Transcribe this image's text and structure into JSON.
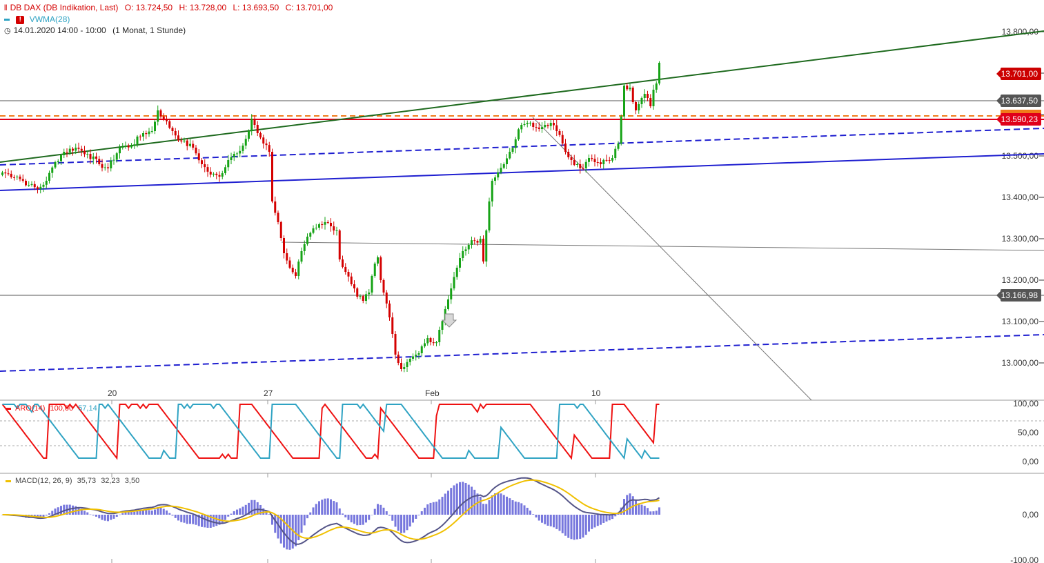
{
  "header": {
    "instrument": "DB DAX (DB Indikation, Last)",
    "open_label": "O: 13.724,50",
    "high_label": "H: 13.728,00",
    "low_label": "L: 13.693,50",
    "close_label": "C: 13.701,00",
    "indicator": "VWMA(28)",
    "period": "14.01.2020 14:00 - 10:00",
    "interval": "(1 Monat, 1 Stunde)"
  },
  "colors": {
    "up": "#16a316",
    "down": "#d40000",
    "trend_green": "#1e6a1e",
    "blue": "#1f1fd0",
    "orange_dashed": "#f07a1a",
    "red_line": "#e0001a",
    "aroon_up": "#ee1111",
    "aroon_down": "#2fa3c3",
    "macd_line": "#555588",
    "signal_line": "#f0c000",
    "histogram": "#7777dd"
  },
  "price_labels": {
    "last": "13.701,00",
    "resistance": "13.637,50",
    "hline_red": "13.590,23",
    "support": "13.166,98"
  },
  "aroon_header": {
    "name": "ARO(14)",
    "up_value": "100,00",
    "down_value": "57,14"
  },
  "macd_header": {
    "name": "MACD(12, 26, 9)",
    "macd_value": "35,73",
    "signal_value": "32,23",
    "hist_value": "3,50"
  },
  "chart_data": [
    {
      "type": "candlestick",
      "title": "DB DAX (DB Indikation, Last)",
      "x_axis_labels": [
        "20",
        "27",
        "Feb",
        "10"
      ],
      "y_axis_labels": [
        "13.800,00",
        "13.700,00",
        "13.600,00",
        "13.500,00",
        "13.400,00",
        "13.300,00",
        "13.200,00",
        "13.100,00",
        "13.000,00"
      ],
      "ylim": [
        12925,
        13810
      ],
      "close_path": [
        [
          0,
          13460
        ],
        [
          5,
          13450
        ],
        [
          9,
          13430
        ],
        [
          12,
          13420
        ],
        [
          15,
          13440
        ],
        [
          18,
          13485
        ],
        [
          21,
          13510
        ],
        [
          25,
          13520
        ],
        [
          29,
          13505
        ],
        [
          33,
          13480
        ],
        [
          36,
          13470
        ],
        [
          40,
          13520
        ],
        [
          44,
          13525
        ],
        [
          48,
          13555
        ],
        [
          51,
          13560
        ],
        [
          53,
          13610
        ],
        [
          55,
          13590
        ],
        [
          58,
          13560
        ],
        [
          61,
          13535
        ],
        [
          65,
          13520
        ],
        [
          68,
          13480
        ],
        [
          71,
          13455
        ],
        [
          74,
          13450
        ],
        [
          77,
          13490
        ],
        [
          79,
          13505
        ],
        [
          82,
          13525
        ],
        [
          84,
          13560
        ],
        [
          85,
          13590
        ],
        [
          87,
          13555
        ],
        [
          89,
          13530
        ],
        [
          91,
          13510
        ],
        [
          92,
          13390
        ],
        [
          94,
          13340
        ],
        [
          96,
          13265
        ],
        [
          98,
          13230
        ],
        [
          100,
          13210
        ],
        [
          102,
          13270
        ],
        [
          104,
          13305
        ],
        [
          106,
          13325
        ],
        [
          108,
          13335
        ],
        [
          110,
          13340
        ],
        [
          112,
          13330
        ],
        [
          114,
          13320
        ],
        [
          115,
          13250
        ],
        [
          117,
          13220
        ],
        [
          119,
          13190
        ],
        [
          121,
          13160
        ],
        [
          123,
          13150
        ],
        [
          125,
          13170
        ],
        [
          127,
          13240
        ],
        [
          128,
          13255
        ],
        [
          129,
          13200
        ],
        [
          130,
          13170
        ],
        [
          132,
          13110
        ],
        [
          133,
          13070
        ],
        [
          134,
          13020
        ],
        [
          135,
          13000
        ],
        [
          136,
          12985
        ],
        [
          137,
          12990
        ],
        [
          139,
          13010
        ],
        [
          141,
          13020
        ],
        [
          143,
          13040
        ],
        [
          145,
          13060
        ],
        [
          146,
          13050
        ],
        [
          148,
          13050
        ],
        [
          149,
          13080
        ],
        [
          151,
          13130
        ],
        [
          153,
          13180
        ],
        [
          155,
          13230
        ],
        [
          157,
          13270
        ],
        [
          159,
          13285
        ],
        [
          161,
          13295
        ],
        [
          163,
          13300
        ],
        [
          164,
          13245
        ],
        [
          165,
          13320
        ],
        [
          166,
          13390
        ],
        [
          167,
          13440
        ],
        [
          169,
          13460
        ],
        [
          171,
          13480
        ],
        [
          173,
          13510
        ],
        [
          175,
          13540
        ],
        [
          177,
          13575
        ],
        [
          179,
          13580
        ],
        [
          181,
          13570
        ],
        [
          183,
          13565
        ],
        [
          185,
          13575
        ],
        [
          187,
          13580
        ],
        [
          189,
          13560
        ],
        [
          191,
          13530
        ],
        [
          192,
          13510
        ],
        [
          194,
          13490
        ],
        [
          196,
          13480
        ],
        [
          198,
          13470
        ],
        [
          200,
          13495
        ],
        [
          202,
          13485
        ],
        [
          204,
          13480
        ],
        [
          206,
          13490
        ],
        [
          208,
          13495
        ],
        [
          210,
          13530
        ],
        [
          212,
          13670
        ],
        [
          214,
          13665
        ],
        [
          215,
          13630
        ],
        [
          216,
          13610
        ],
        [
          217,
          13625
        ],
        [
          218,
          13640
        ],
        [
          219,
          13650
        ],
        [
          220,
          13640
        ],
        [
          221,
          13620
        ],
        [
          222,
          13660
        ],
        [
          223,
          13675
        ],
        [
          224,
          13725
        ]
      ],
      "overlays": [
        "VWMA(28)",
        "green uptrend line",
        "blue trend channel",
        "orange dashed resistance",
        "red horizontal line"
      ],
      "markers": [
        "down-arrow at Feb 4"
      ]
    },
    {
      "type": "line",
      "title": "ARO(14)",
      "y_axis_labels": [
        "100,00",
        "50,00",
        "0,00"
      ],
      "ylim": [
        -12,
        100
      ],
      "series": [
        {
          "name": "Aroon up",
          "current": 100.0
        },
        {
          "name": "Aroon down",
          "current": 57.14
        }
      ]
    },
    {
      "type": "line",
      "title": "MACD(12, 26, 9)",
      "y_axis_labels": [
        "0,00",
        "-100,00"
      ],
      "series": [
        {
          "name": "MACD",
          "current": 35.73
        },
        {
          "name": "Signal",
          "current": 32.23
        },
        {
          "name": "Histogram",
          "current": 3.5
        }
      ]
    }
  ]
}
